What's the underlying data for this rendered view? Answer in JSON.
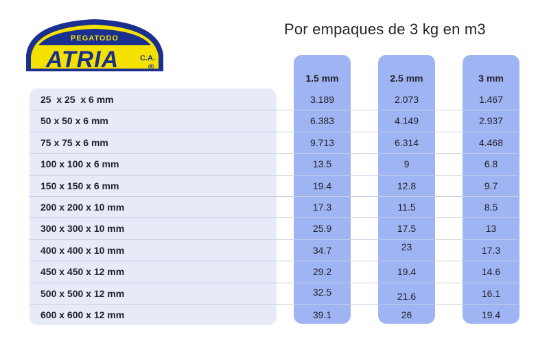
{
  "logo": {
    "top_text": "PEGATODO",
    "brand": "ATRIA",
    "suffix": "C.A.",
    "reg": "®"
  },
  "title": "Por empaques de 3 kg en m3",
  "columns": [
    "1.5 mm",
    "2.5 mm",
    "3 mm"
  ],
  "rows": [
    {
      "size": "25  x 25  x 6 mm",
      "values": [
        "3.189",
        "2.073",
        "1.467"
      ]
    },
    {
      "size": "50 x 50 x 6 mm",
      "values": [
        "6.383",
        "4.149",
        "2.937"
      ]
    },
    {
      "size": "75 x 75 x 6 mm",
      "values": [
        "9.713",
        "6.314",
        "4.468"
      ]
    },
    {
      "size": "100 x 100 x 6 mm",
      "values": [
        "13.5",
        "9",
        "6.8"
      ]
    },
    {
      "size": "150 x 150 x 6 mm",
      "values": [
        "19.4",
        "12.8",
        "9.7"
      ]
    },
    {
      "size": "200 x 200 x 10 mm",
      "values": [
        "17.3",
        "11.5",
        "8.5"
      ]
    },
    {
      "size": "300 x 300 x 10 mm",
      "values": [
        "25.9",
        "17.5",
        "13"
      ]
    },
    {
      "size": "400 x 400 x 10 mm",
      "values": [
        "34.7",
        "23",
        "17.3"
      ]
    },
    {
      "size": "450 x 450 x 12 mm",
      "values": [
        "29.2",
        "19.4",
        "14.6"
      ]
    },
    {
      "size": "500 x 500 x 12 mm",
      "values": [
        "32.5",
        "21.6",
        "16.1"
      ]
    },
    {
      "size": "600 x 600 x 12 mm",
      "values": [
        "39.1",
        "26",
        "19.4"
      ]
    }
  ],
  "colors": {
    "logo_blue": "#1b2f8f",
    "logo_yellow": "#f5e100",
    "column_blue": "#9fb4f2",
    "row_bg": "#e6ebf7"
  }
}
